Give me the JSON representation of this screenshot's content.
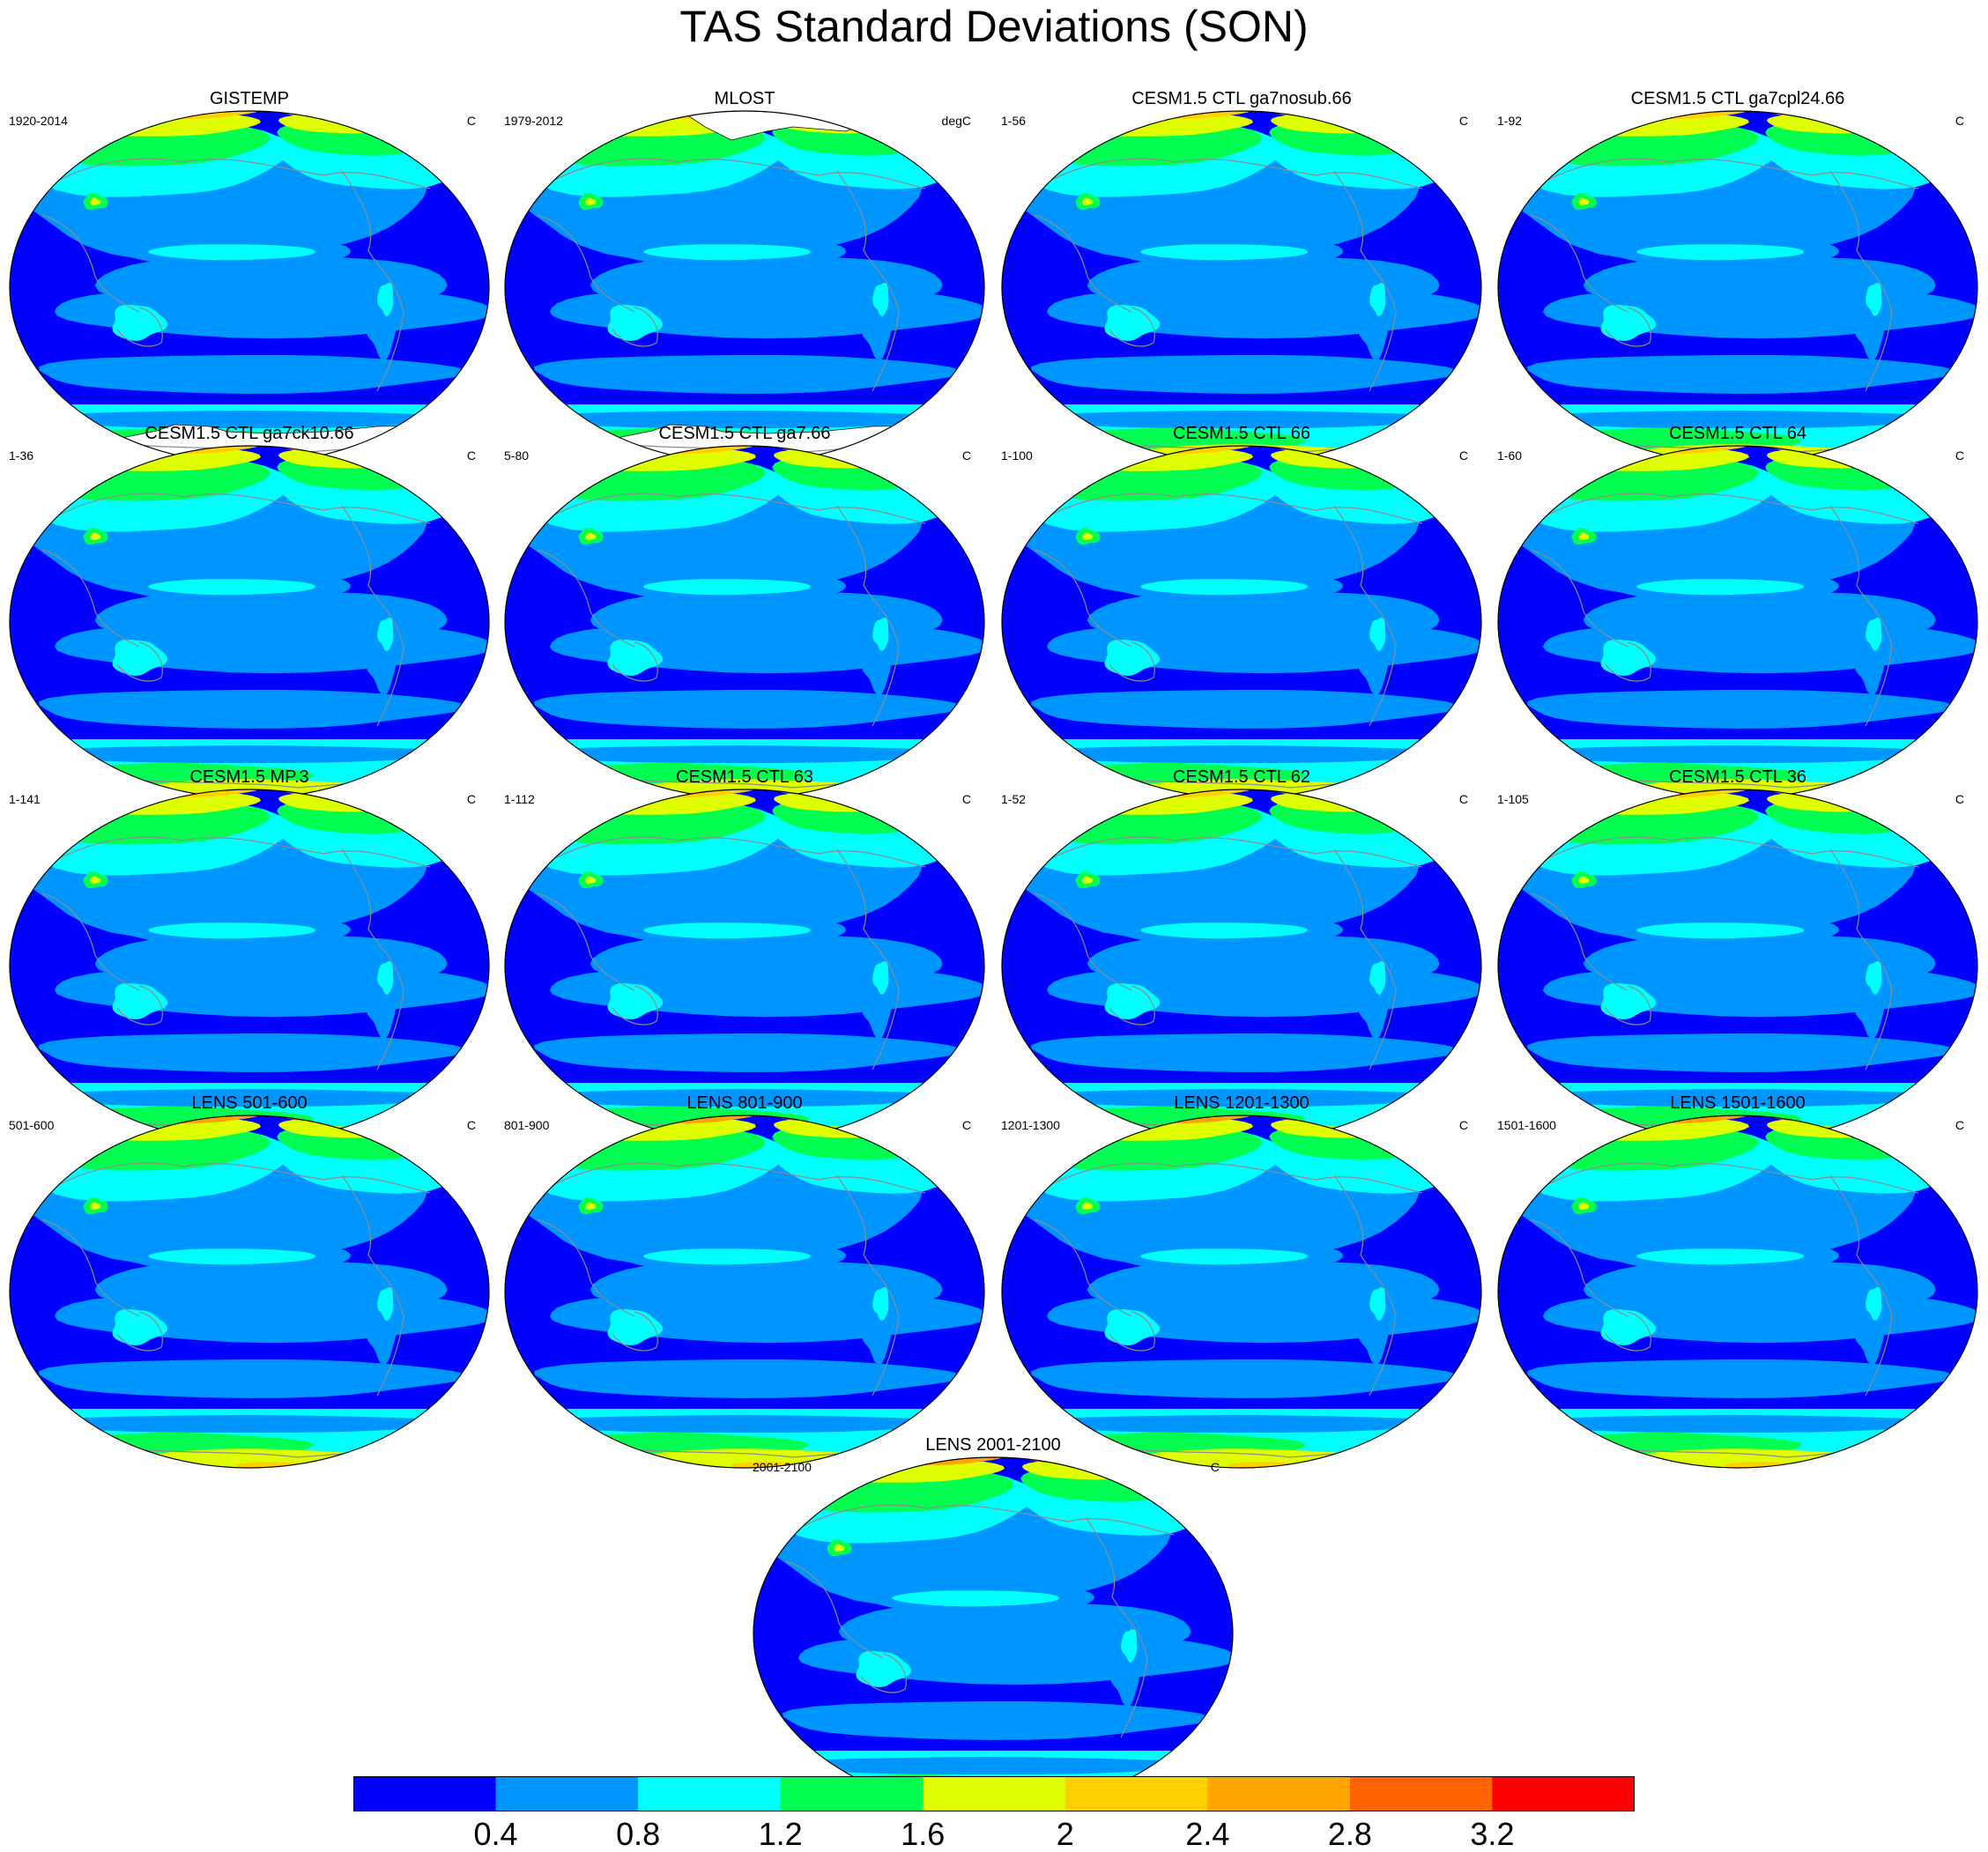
{
  "title": "TAS Standard Deviations (SON)",
  "palette": [
    "#0000ff",
    "#0096ff",
    "#00ffff",
    "#00ff50",
    "#dfff00",
    "#ffd000",
    "#ffa500",
    "#ff6400",
    "#ff0000"
  ],
  "land_line_color": "#8c8c8c",
  "missing_color": "#ffffff",
  "colorbar": {
    "labels": [
      "0.4",
      "0.8",
      "1.2",
      "1.6",
      "2",
      "2.4",
      "2.8",
      "3.2"
    ]
  },
  "panels": [
    {
      "title": "GISTEMP",
      "left": "1920-2014",
      "right": "C",
      "missing": "antarctic"
    },
    {
      "title": "MLOST",
      "left": "1979-2012",
      "right": "degC",
      "missing": "both"
    },
    {
      "title": "CESM1.5 CTL ga7nosub.66",
      "left": "1-56",
      "right": "C"
    },
    {
      "title": "CESM1.5 CTL ga7cpl24.66",
      "left": "1-92",
      "right": "C"
    },
    {
      "title": "CESM1.5 CTL ga7ck10.66",
      "left": "1-36",
      "right": "C"
    },
    {
      "title": "CESM1.5 CTL ga7.66",
      "left": "5-80",
      "right": "C"
    },
    {
      "title": "CESM1.5 CTL 66",
      "left": "1-100",
      "right": "C"
    },
    {
      "title": "CESM1.5 CTL 64",
      "left": "1-60",
      "right": "C"
    },
    {
      "title": "CESM1.5 MP.3",
      "left": "1-141",
      "right": "C"
    },
    {
      "title": "CESM1.5 CTL 63",
      "left": "1-112",
      "right": "C"
    },
    {
      "title": "CESM1.5 CTL 62",
      "left": "1-52",
      "right": "C"
    },
    {
      "title": "CESM1.5 CTL 36",
      "left": "1-105",
      "right": "C"
    },
    {
      "title": "LENS 501-600",
      "left": "501-600",
      "right": "C"
    },
    {
      "title": "LENS 801-900",
      "left": "801-900",
      "right": "C"
    },
    {
      "title": "LENS 1201-1300",
      "left": "1201-1300",
      "right": "C"
    },
    {
      "title": "LENS 1501-1600",
      "left": "1501-1600",
      "right": "C"
    },
    {
      "title": "LENS 2001-2100",
      "left": "2001-2100",
      "right": "C"
    }
  ]
}
